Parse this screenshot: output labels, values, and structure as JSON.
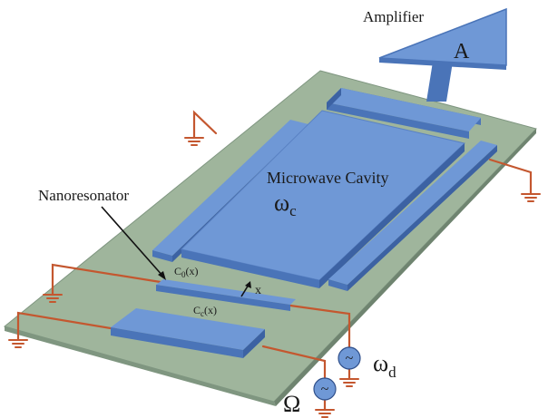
{
  "labels": {
    "amplifier": "Amplifier",
    "amplifier_symbol": "A",
    "cavity_title": "Microwave Cavity",
    "omega_c_sym": "ω",
    "omega_c_sub": "c",
    "nanoresonator": "Nanoresonator",
    "c0_main": "C",
    "c0_sub": "0",
    "c0_arg": "(x)",
    "cc_main": "C",
    "cc_sub": "c",
    "cc_arg": "(x)",
    "x": "x",
    "omega_d_sym": "ω",
    "omega_d_sub": "d",
    "big_omega": "Ω",
    "source_symbol_d": "~",
    "source_symbol_omega": "~"
  },
  "colors": {
    "background": "#ffffff",
    "board_top": "#9fb59c",
    "board_side": "#6f8470",
    "electrode_top": "#6f98d6",
    "electrode_front": "#4a74b8",
    "electrode_side": "#3c62a3",
    "wire": "#c4572f",
    "ground": "#c4572f",
    "source_fill": "#6f98d6",
    "text": "#1a1a1a"
  }
}
